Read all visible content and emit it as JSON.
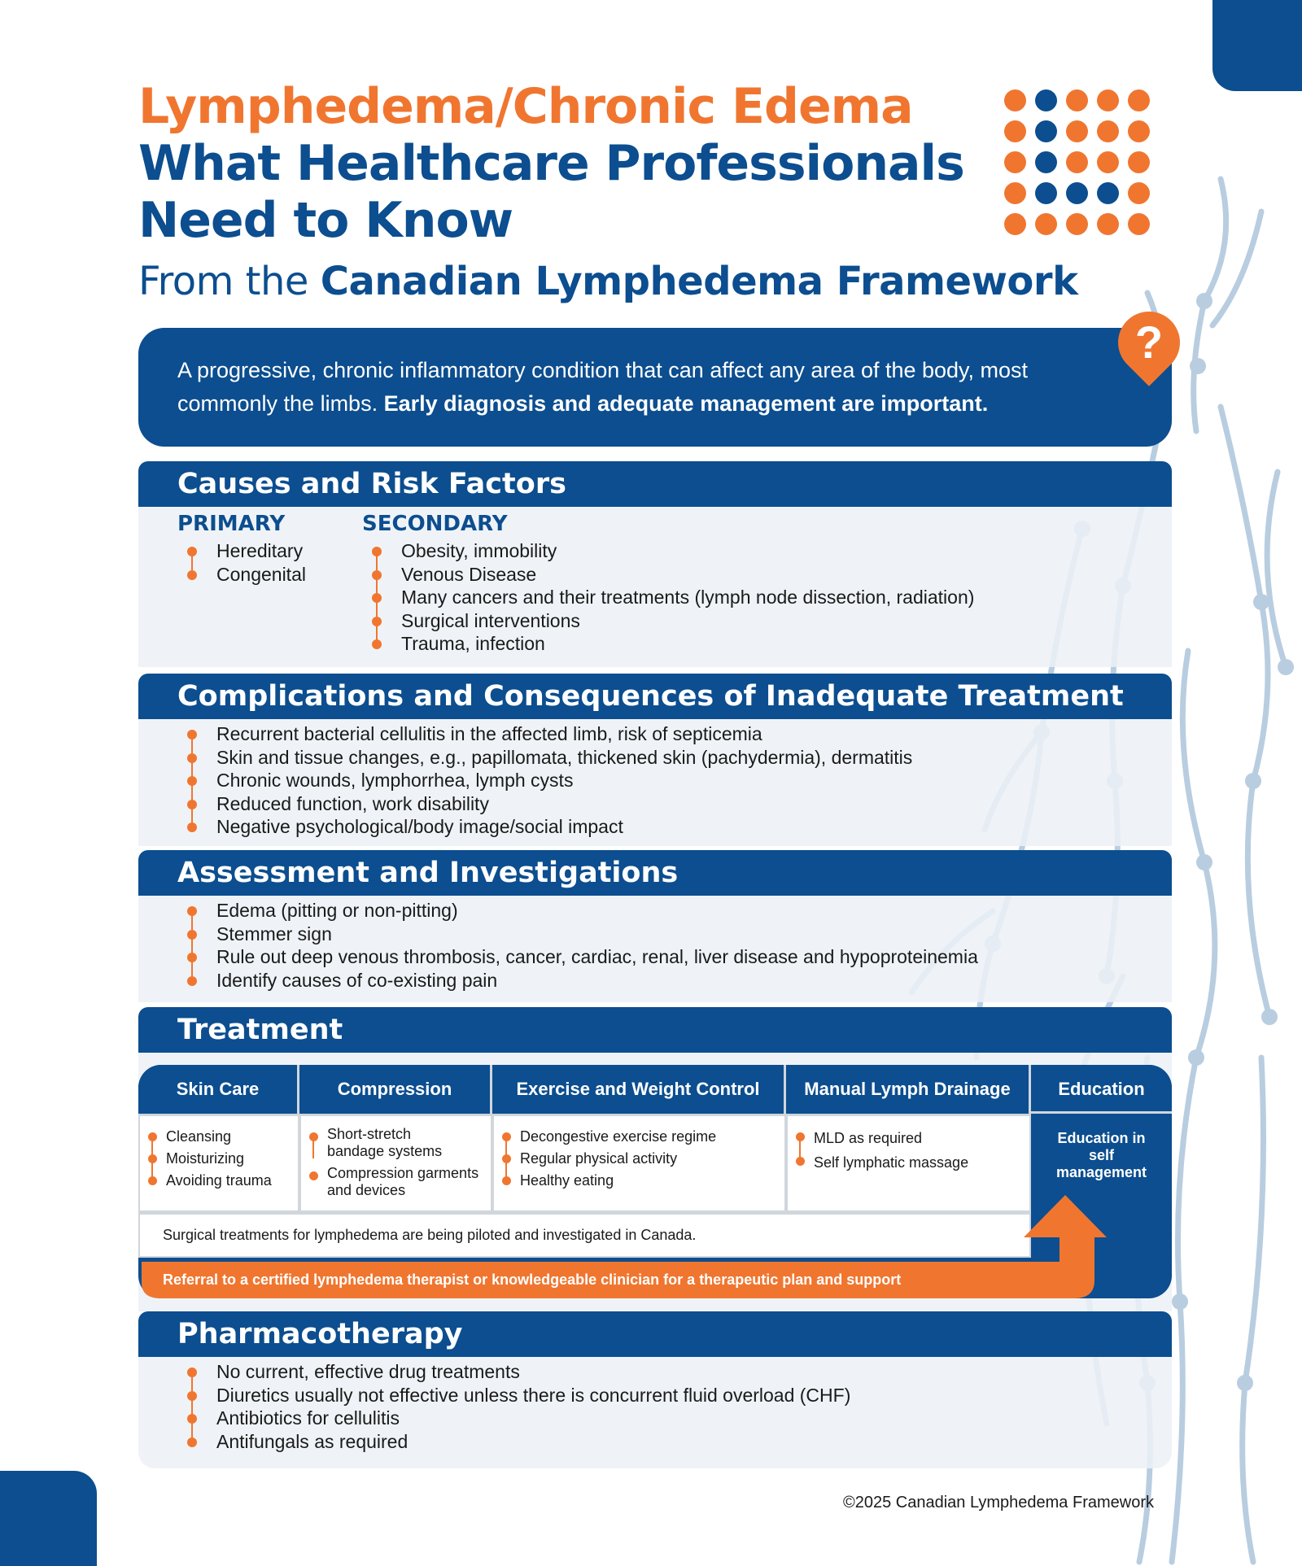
{
  "colors": {
    "orange": "#f07630",
    "blue": "#0c4e8f",
    "light_blue": "#b9cde0",
    "section_bg": "#ecf1f6"
  },
  "title": {
    "line1": "Lymphedema/Chronic Edema",
    "line2": "What Healthcare Professionals",
    "line3": "Need to Know",
    "subtitle_prefix": "From the ",
    "subtitle_bold": "Canadian Lymphedema Framework"
  },
  "intro": {
    "text": "A progressive, chronic inflammatory condition that can affect any area of the body, most commonly the limbs. ",
    "bold": "Early diagnosis and adequate management are important.",
    "icon": "question-marker-icon"
  },
  "causes": {
    "heading": "Causes and Risk Factors",
    "primary_label": "PRIMARY",
    "primary": [
      "Hereditary",
      "Congenital"
    ],
    "secondary_label": "SECONDARY",
    "secondary": [
      "Obesity, immobility",
      "Venous Disease",
      "Many cancers and their treatments (lymph node dissection, radiation)",
      "Surgical interventions",
      "Trauma, infection"
    ]
  },
  "complications": {
    "heading": "Complications and Consequences of Inadequate Treatment",
    "items": [
      "Recurrent bacterial cellulitis in the affected limb, risk of septicemia",
      "Skin and tissue changes, e.g., papillomata, thickened skin (pachydermia), dermatitis",
      "Chronic wounds, lymphorrhea, lymph cysts",
      "Reduced function, work disability",
      "Negative psychological/body image/social impact"
    ]
  },
  "assessment": {
    "heading": "Assessment and Investigations",
    "items": [
      "Edema (pitting or non-pitting)",
      "Stemmer sign",
      "Rule out deep venous thrombosis, cancer, cardiac, renal, liver disease and hypoproteinemia",
      "Identify causes of co-existing pain"
    ]
  },
  "treatment": {
    "heading": "Treatment",
    "columns": [
      {
        "label": "Skin Care",
        "items": [
          "Cleansing",
          "Moisturizing",
          "Avoiding trauma"
        ]
      },
      {
        "label": "Compression",
        "items": [
          "Short-stretch bandage systems",
          "Compression garments and devices"
        ]
      },
      {
        "label": "Exercise and Weight Control",
        "items": [
          "Decongestive exercise regime",
          "Regular physical activity",
          "Healthy eating"
        ]
      },
      {
        "label": "Manual Lymph Drainage",
        "items": [
          "MLD as required",
          "Self lymphatic massage"
        ]
      }
    ],
    "education_label": "Education",
    "education_text": "Education in self management",
    "surgical_note": "Surgical treatments for lymphedema are being piloted and investigated in Canada.",
    "referral": "Referral to a certified lymphedema therapist or knowledgeable clinician for a therapeutic plan and support"
  },
  "pharmacotherapy": {
    "heading": "Pharmacotherapy",
    "items": [
      "No current, effective drug treatments",
      "Diuretics usually not effective unless there is concurrent fluid overload (CHF)",
      "Antibiotics for cellulitis",
      "Antifungals as required"
    ]
  },
  "footer": {
    "copyright": "©2025 Canadian Lymphedema Framework"
  }
}
